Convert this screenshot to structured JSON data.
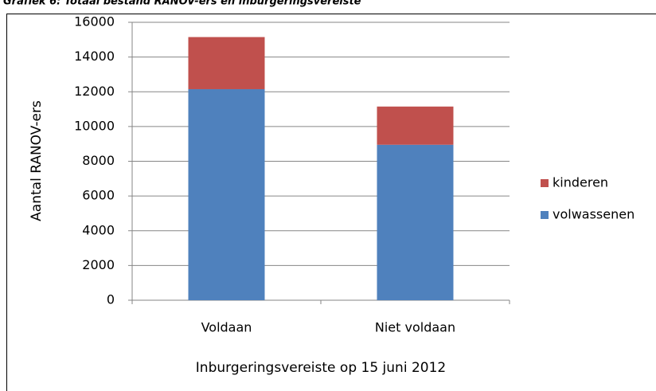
{
  "chart_data": {
    "type": "bar",
    "stacked": true,
    "title": "Grafiek 6: Totaal bestand RANOV-ers en inburgeringsvereiste",
    "categories": [
      "Voldaan",
      "Niet voldaan"
    ],
    "series": [
      {
        "name": "volwassenen",
        "color": "#4f81bd",
        "values": [
          12150,
          8950
        ]
      },
      {
        "name": "kinderen",
        "color": "#c0504d",
        "values": [
          3000,
          2200
        ]
      }
    ],
    "ylim": [
      0,
      16000
    ],
    "yticks": [
      0,
      2000,
      4000,
      6000,
      8000,
      10000,
      12000,
      14000,
      16000
    ],
    "grid": true,
    "legend": "right",
    "xlabel": "Inburgeringsvereiste op 15 juni 2012",
    "ylabel": "Aantal RANOV-ers"
  }
}
